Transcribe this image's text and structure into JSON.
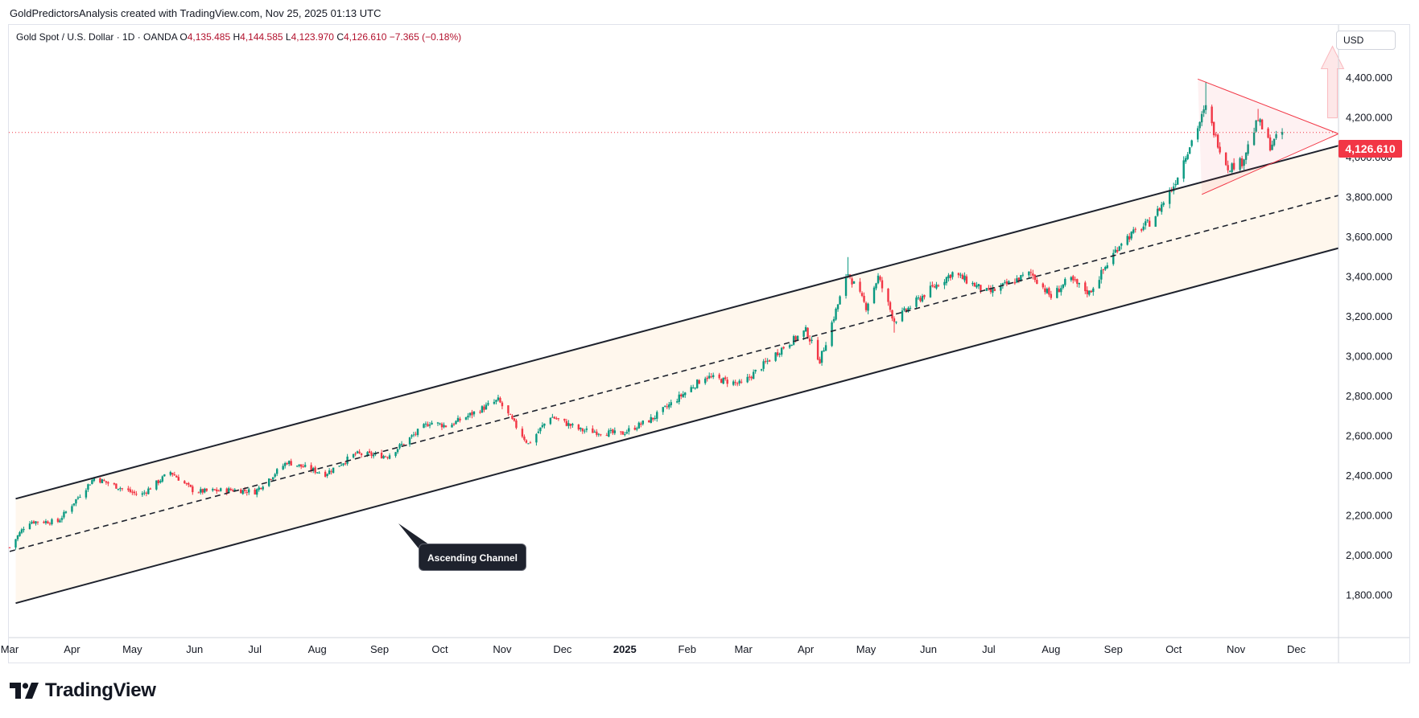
{
  "header": {
    "credit": "GoldPredictorsAnalysis created with TradingView.com, Nov 25, 2025 01:13 UTC"
  },
  "legend": {
    "symbol": "Gold Spot / U.S. Dollar · 1D · OANDA",
    "open_label": "O",
    "open": "4,135.485",
    "high_label": "H",
    "high": "4,144.585",
    "low_label": "L",
    "low": "4,123.970",
    "close_label": "C",
    "close": "4,126.610",
    "change": "−7.365 (−0.18%)"
  },
  "price_axis": {
    "currency_button": "USD",
    "last_price_tag": "4,126.610"
  },
  "annotation": {
    "text": "Ascending Channel"
  },
  "footer": {
    "brand": "TradingView"
  },
  "colors": {
    "up": "#089981",
    "down": "#f23645",
    "channel": "#1e222d",
    "channel_fill": "#fff3e6",
    "triangle": "#f23645",
    "price_line": "#f23645"
  },
  "chart_data": {
    "type": "candlestick",
    "symbol": "XAUUSD",
    "timeframe": "1D",
    "ylim": [
      1700,
      4550
    ],
    "y_ticks": [
      1800,
      2000,
      2200,
      2400,
      2600,
      2800,
      3000,
      3200,
      3400,
      3600,
      3800,
      4000,
      4200,
      4400,
      4600
    ],
    "x_range": [
      "2024-03-01",
      "2025-12-22"
    ],
    "x_ticks": [
      {
        "date": "2024-03-01",
        "label": "Mar",
        "bold": false
      },
      {
        "date": "2024-04-01",
        "label": "Apr",
        "bold": false
      },
      {
        "date": "2024-05-01",
        "label": "May",
        "bold": false
      },
      {
        "date": "2024-06-01",
        "label": "Jun",
        "bold": false
      },
      {
        "date": "2024-07-01",
        "label": "Jul",
        "bold": false
      },
      {
        "date": "2024-08-01",
        "label": "Aug",
        "bold": false
      },
      {
        "date": "2024-09-01",
        "label": "Sep",
        "bold": false
      },
      {
        "date": "2024-10-01",
        "label": "Oct",
        "bold": false
      },
      {
        "date": "2024-11-01",
        "label": "Nov",
        "bold": false
      },
      {
        "date": "2024-12-01",
        "label": "Dec",
        "bold": false
      },
      {
        "date": "2025-01-01",
        "label": "2025",
        "bold": true
      },
      {
        "date": "2025-02-01",
        "label": "Feb",
        "bold": false
      },
      {
        "date": "2025-03-01",
        "label": "Mar",
        "bold": false
      },
      {
        "date": "2025-04-01",
        "label": "Apr",
        "bold": false
      },
      {
        "date": "2025-05-01",
        "label": "May",
        "bold": false
      },
      {
        "date": "2025-06-01",
        "label": "Jun",
        "bold": false
      },
      {
        "date": "2025-07-01",
        "label": "Jul",
        "bold": false
      },
      {
        "date": "2025-08-01",
        "label": "Aug",
        "bold": false
      },
      {
        "date": "2025-09-01",
        "label": "Sep",
        "bold": false
      },
      {
        "date": "2025-10-01",
        "label": "Oct",
        "bold": false
      },
      {
        "date": "2025-11-01",
        "label": "Nov",
        "bold": false
      },
      {
        "date": "2025-12-01",
        "label": "Dec",
        "bold": false
      }
    ],
    "last_close": 4126.61,
    "close_path": [
      {
        "date": "2024-03-01",
        "close": 2040
      },
      {
        "date": "2024-03-10",
        "close": 2170
      },
      {
        "date": "2024-03-25",
        "close": 2170
      },
      {
        "date": "2024-04-12",
        "close": 2390
      },
      {
        "date": "2024-04-25",
        "close": 2340
      },
      {
        "date": "2024-05-05",
        "close": 2300
      },
      {
        "date": "2024-05-20",
        "close": 2420
      },
      {
        "date": "2024-06-01",
        "close": 2320
      },
      {
        "date": "2024-06-20",
        "close": 2330
      },
      {
        "date": "2024-07-01",
        "close": 2320
      },
      {
        "date": "2024-07-17",
        "close": 2470
      },
      {
        "date": "2024-08-05",
        "close": 2410
      },
      {
        "date": "2024-08-20",
        "close": 2510
      },
      {
        "date": "2024-09-05",
        "close": 2500
      },
      {
        "date": "2024-09-26",
        "close": 2670
      },
      {
        "date": "2024-10-05",
        "close": 2650
      },
      {
        "date": "2024-10-30",
        "close": 2780
      },
      {
        "date": "2024-11-14",
        "close": 2560
      },
      {
        "date": "2024-11-25",
        "close": 2700
      },
      {
        "date": "2024-12-10",
        "close": 2630
      },
      {
        "date": "2024-12-30",
        "close": 2610
      },
      {
        "date": "2025-01-15",
        "close": 2690
      },
      {
        "date": "2025-02-10",
        "close": 2900
      },
      {
        "date": "2025-02-28",
        "close": 2860
      },
      {
        "date": "2025-03-20",
        "close": 3040
      },
      {
        "date": "2025-04-01",
        "close": 3130
      },
      {
        "date": "2025-04-08",
        "close": 2980
      },
      {
        "date": "2025-04-22",
        "close": 3420
      },
      {
        "date": "2025-05-01",
        "close": 3250
      },
      {
        "date": "2025-05-07",
        "close": 3400
      },
      {
        "date": "2025-05-15",
        "close": 3180
      },
      {
        "date": "2025-06-01",
        "close": 3330
      },
      {
        "date": "2025-06-13",
        "close": 3420
      },
      {
        "date": "2025-07-01",
        "close": 3320
      },
      {
        "date": "2025-07-22",
        "close": 3420
      },
      {
        "date": "2025-08-01",
        "close": 3300
      },
      {
        "date": "2025-08-10",
        "close": 3390
      },
      {
        "date": "2025-08-20",
        "close": 3320
      },
      {
        "date": "2025-09-05",
        "close": 3580
      },
      {
        "date": "2025-09-20",
        "close": 3680
      },
      {
        "date": "2025-10-01",
        "close": 3860
      },
      {
        "date": "2025-10-08",
        "close": 4040
      },
      {
        "date": "2025-10-17",
        "close": 4250
      },
      {
        "date": "2025-10-22",
        "close": 4100
      },
      {
        "date": "2025-10-28",
        "close": 3950
      },
      {
        "date": "2025-11-04",
        "close": 3980
      },
      {
        "date": "2025-11-12",
        "close": 4190
      },
      {
        "date": "2025-11-18",
        "close": 4060
      },
      {
        "date": "2025-11-24",
        "close": 4126.61
      }
    ],
    "spikes": [
      {
        "date": "2025-04-22",
        "high": 3500
      },
      {
        "date": "2025-05-15",
        "low": 3120
      },
      {
        "date": "2025-10-17",
        "high": 4381
      },
      {
        "date": "2025-11-12",
        "high": 4245
      }
    ],
    "drawings": {
      "channel_upper": [
        {
          "date": "2024-03-04",
          "price": 2285
        },
        {
          "date": "2025-12-22",
          "price": 4060
        }
      ],
      "channel_lower": [
        {
          "date": "2024-03-04",
          "price": 1760
        },
        {
          "date": "2025-12-22",
          "price": 3545
        }
      ],
      "channel_mid": [
        {
          "date": "2024-03-01",
          "price": 2020
        },
        {
          "date": "2025-12-22",
          "price": 3810
        }
      ],
      "triangle_upper": [
        {
          "date": "2025-10-13",
          "price": 4395
        },
        {
          "date": "2025-12-22",
          "price": 4120
        }
      ],
      "triangle_lower": [
        {
          "date": "2025-10-15",
          "price": 3815
        },
        {
          "date": "2025-12-22",
          "price": 4120
        }
      ],
      "target_arrow": {
        "date": "2025-12-19",
        "from": 4200,
        "to": 4560
      }
    }
  }
}
